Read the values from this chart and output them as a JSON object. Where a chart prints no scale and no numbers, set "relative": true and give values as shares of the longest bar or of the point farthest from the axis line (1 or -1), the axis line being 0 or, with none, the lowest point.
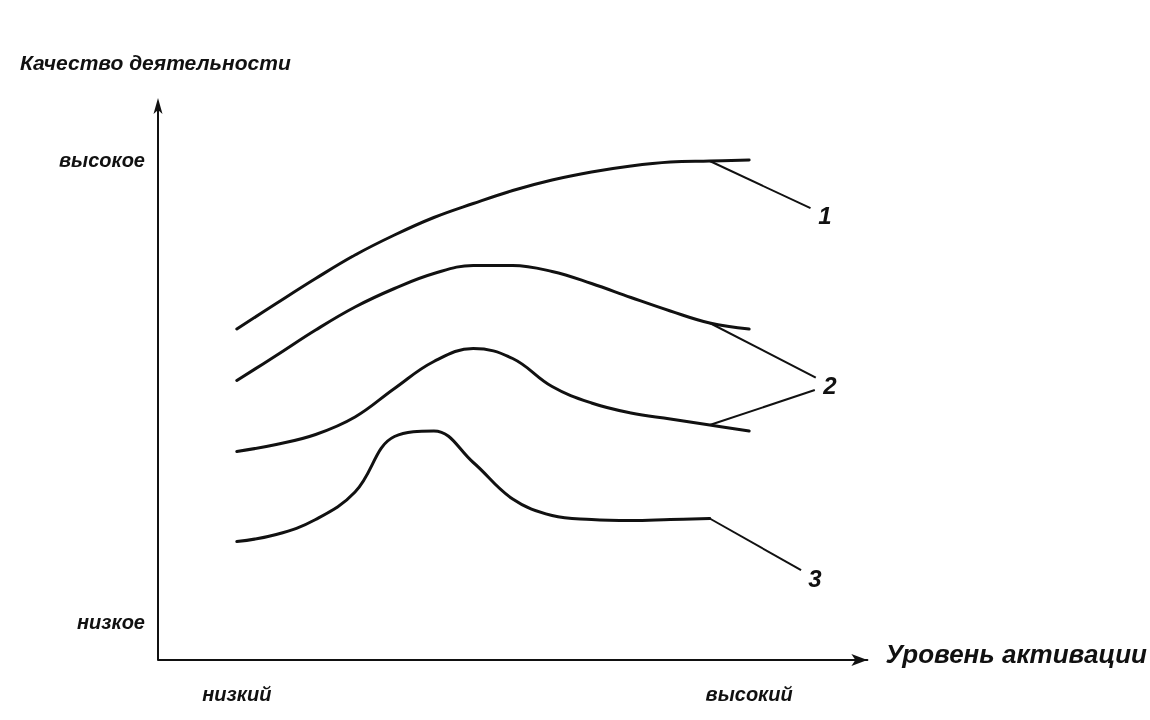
{
  "chart_data": {
    "type": "line",
    "relative": true,
    "xlabel": "Уровень активации",
    "ylabel": "Качество деятельности",
    "categories": [
      null,
      null,
      "низкий",
      null,
      null,
      null,
      null,
      null,
      null,
      null,
      null,
      null,
      null,
      null,
      null,
      "высокий",
      null,
      null,
      null
    ],
    "grid": false,
    "marker": "none",
    "line_style": "solid",
    "series": [
      {
        "color": "#111111",
        "values": [
          null,
          null,
          0.662,
          0.713,
          0.763,
          0.81,
          0.85,
          0.885,
          0.913,
          0.939,
          0.96,
          0.976,
          0.988,
          0.996,
          0.998,
          1,
          null,
          null,
          null
        ]
      },
      {
        "color": "#111111",
        "values": [
          null,
          null,
          0.559,
          0.609,
          0.66,
          0.706,
          0.743,
          0.773,
          0.789,
          0.789,
          0.777,
          0.753,
          0.725,
          0.698,
          0.674,
          0.662,
          null,
          null,
          null
        ]
      },
      {
        "color": "#111111",
        "values": [
          null,
          null,
          0.417,
          0.431,
          0.451,
          0.486,
          0.543,
          0.597,
          0.623,
          0.603,
          0.547,
          0.514,
          0.494,
          0.482,
          0.47,
          0.458,
          null,
          null,
          null
        ]
      },
      {
        "color": "#111111",
        "values": [
          null,
          null,
          0.237,
          0.251,
          0.281,
          0.336,
          0.447,
          0.458,
          0.395,
          0.322,
          0.289,
          0.281,
          0.279,
          0.281,
          0.283,
          null,
          null,
          null,
          null
        ]
      }
    ],
    "annotations": [
      "высокое",
      "1",
      "2",
      "3",
      "низкое"
    ]
  }
}
